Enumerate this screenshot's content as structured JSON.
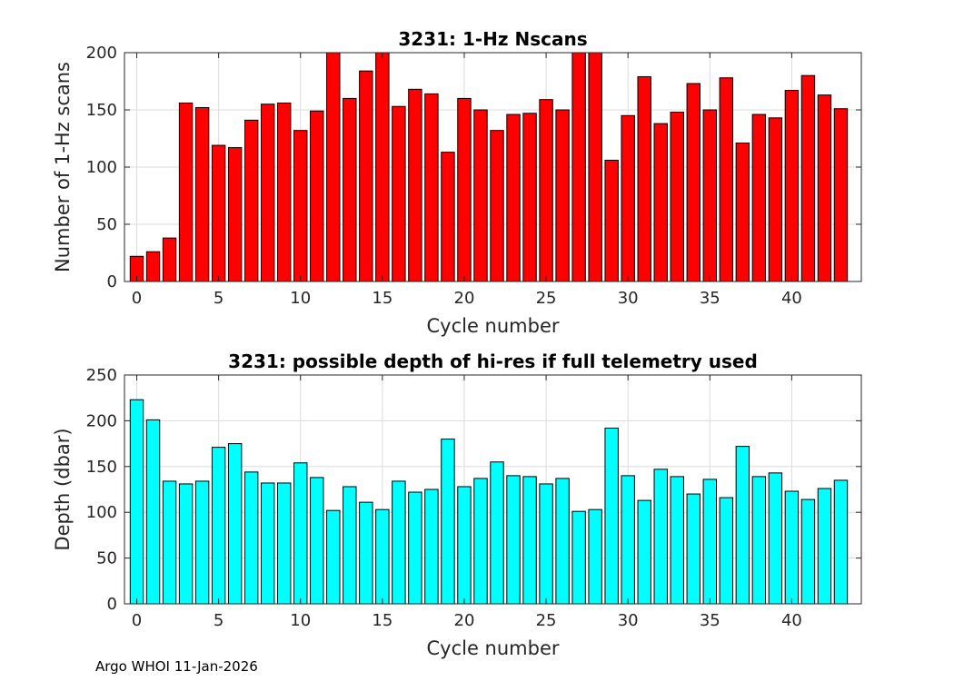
{
  "footer": "Argo WHOI 11-Jan-2026",
  "chart_data": [
    {
      "type": "bar",
      "title": "3231: 1-Hz Nscans",
      "xlabel": "Cycle number",
      "ylabel": "Number of 1-Hz scans",
      "xlim": [
        -0.75,
        44.25
      ],
      "ylim": [
        0,
        200
      ],
      "xticks": [
        0,
        5,
        10,
        15,
        20,
        25,
        30,
        35,
        40
      ],
      "yticks": [
        0,
        50,
        100,
        150,
        200
      ],
      "grid": true,
      "color": "#ff0000",
      "x": [
        0,
        1,
        2,
        3,
        4,
        5,
        6,
        7,
        8,
        9,
        10,
        11,
        12,
        13,
        14,
        15,
        16,
        17,
        18,
        19,
        20,
        21,
        22,
        23,
        24,
        25,
        26,
        27,
        28,
        29,
        30,
        31,
        32,
        33,
        34,
        35,
        36,
        37,
        38,
        39,
        40,
        41,
        42,
        43
      ],
      "values": [
        22,
        26,
        38,
        156,
        152,
        119,
        117,
        141,
        155,
        156,
        132,
        149,
        200,
        160,
        184,
        200,
        153,
        168,
        164,
        113,
        160,
        150,
        132,
        146,
        147,
        159,
        150,
        200,
        200,
        106,
        145,
        179,
        138,
        148,
        173,
        150,
        178,
        121,
        146,
        143,
        167,
        180,
        163,
        151
      ]
    },
    {
      "type": "bar",
      "title": "3231: possible depth of hi-res if full telemetry used",
      "xlabel": "Cycle number",
      "ylabel": "Depth (dbar)",
      "xlim": [
        -0.75,
        44.25
      ],
      "ylim": [
        0,
        250
      ],
      "xticks": [
        0,
        5,
        10,
        15,
        20,
        25,
        30,
        35,
        40
      ],
      "yticks": [
        0,
        50,
        100,
        150,
        200,
        250
      ],
      "grid": true,
      "color": "#00ffff",
      "x": [
        0,
        1,
        2,
        3,
        4,
        5,
        6,
        7,
        8,
        9,
        10,
        11,
        12,
        13,
        14,
        15,
        16,
        17,
        18,
        19,
        20,
        21,
        22,
        23,
        24,
        25,
        26,
        27,
        28,
        29,
        30,
        31,
        32,
        33,
        34,
        35,
        36,
        37,
        38,
        39,
        40,
        41,
        42,
        43
      ],
      "values": [
        223,
        201,
        134,
        131,
        134,
        171,
        175,
        144,
        132,
        132,
        154,
        138,
        102,
        128,
        111,
        103,
        134,
        122,
        125,
        180,
        128,
        137,
        155,
        140,
        139,
        131,
        137,
        101,
        103,
        192,
        140,
        113,
        147,
        139,
        120,
        136,
        116,
        172,
        139,
        143,
        123,
        114,
        126,
        135
      ]
    }
  ]
}
